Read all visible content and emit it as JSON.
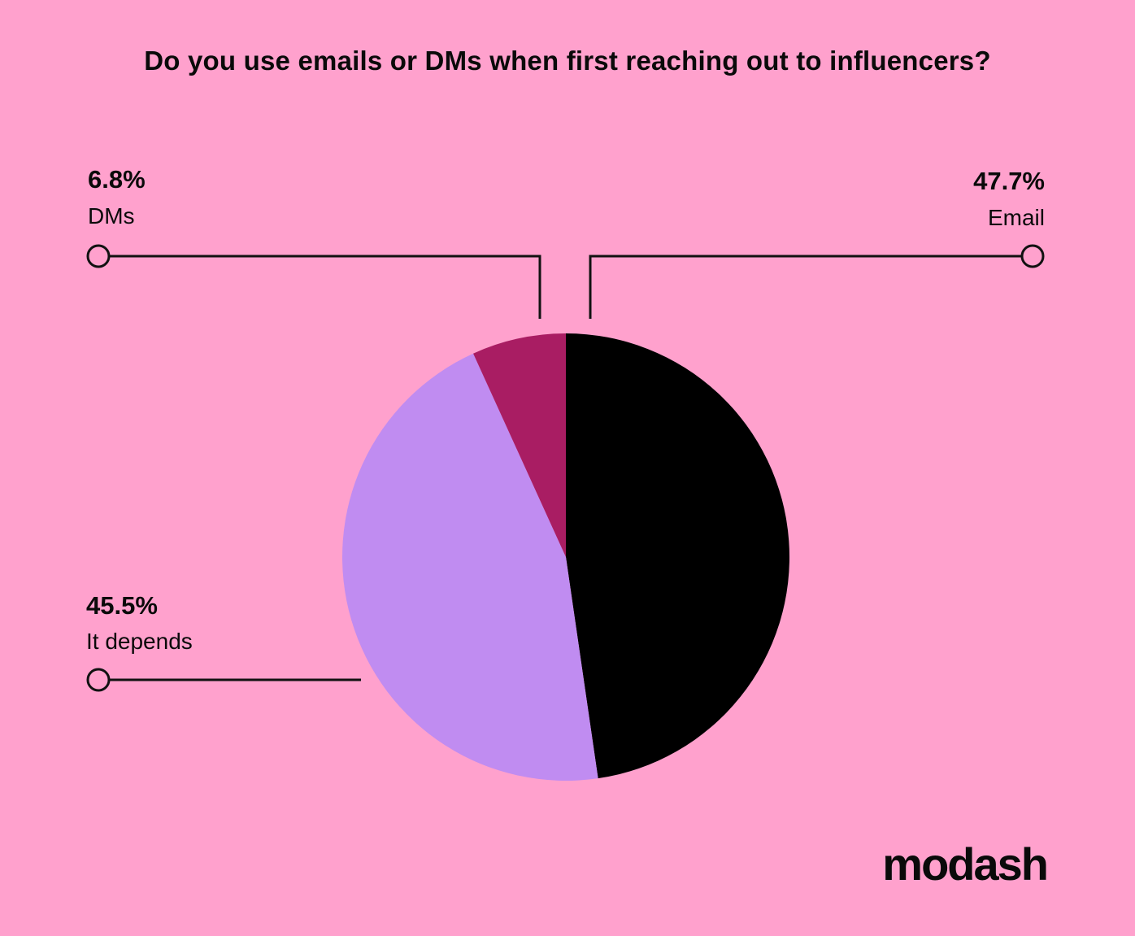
{
  "chart_data": {
    "type": "pie",
    "title": "Do you use emails or DMs when first reaching out to influencers?",
    "slices": [
      {
        "label": "Email",
        "value": 47.7,
        "display": "47.7%",
        "color": "#000000"
      },
      {
        "label": "It depends",
        "value": 45.5,
        "display": "45.5%",
        "color": "#c08cf1"
      },
      {
        "label": "DMs",
        "value": 6.8,
        "display": "6.8%",
        "color": "#a91d63"
      }
    ],
    "start": "top, clockwise"
  },
  "brand": {
    "logo_text": "modash"
  },
  "colors": {
    "background": "#ffa1cd",
    "leader": "#111111"
  }
}
